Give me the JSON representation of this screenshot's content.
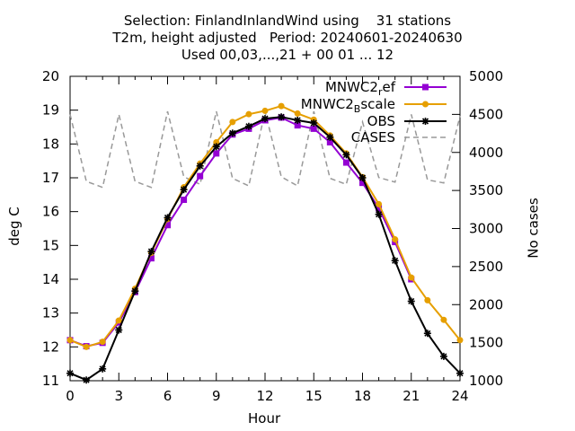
{
  "title": {
    "line1": "Selection: FinlandInlandWind using    31 stations",
    "line2": "T2m, height adjusted   Period: 20240601-20240630",
    "line3": "Used 00,03,...,21 + 00 01 ... 12"
  },
  "chart_data": {
    "type": "line",
    "xlabel": "Hour",
    "ylabel": "deg C",
    "y2label": "No cases",
    "xlim": [
      0,
      24
    ],
    "ylim": [
      11,
      20
    ],
    "y2lim": [
      1000,
      5000
    ],
    "xticks": [
      0,
      3,
      6,
      9,
      12,
      15,
      18,
      21,
      24
    ],
    "yticks": [
      11,
      12,
      13,
      14,
      15,
      16,
      17,
      18,
      19,
      20
    ],
    "y2ticks": [
      1000,
      1500,
      2000,
      2500,
      3000,
      3500,
      4000,
      4500,
      5000
    ],
    "grid": false,
    "legend_position": "top-right",
    "x": [
      0,
      1,
      2,
      3,
      4,
      5,
      6,
      7,
      8,
      9,
      10,
      11,
      12,
      13,
      14,
      15,
      16,
      17,
      18,
      19,
      20,
      21,
      22,
      23,
      24
    ],
    "series": [
      {
        "name": "MNWC2_ref",
        "name_main": "MNWC2",
        "name_sub": "r",
        "name_tail": "ef",
        "color": "#9400d3",
        "marker": "square",
        "axis": "left",
        "values": [
          12.2,
          12.02,
          12.12,
          12.72,
          13.62,
          14.62,
          15.6,
          16.35,
          17.05,
          17.72,
          18.28,
          18.45,
          18.7,
          18.78,
          18.55,
          18.45,
          18.05,
          17.45,
          16.85,
          16.1,
          15.1,
          14.0,
          null,
          null,
          null
        ]
      },
      {
        "name": "MNWC2_Bscale",
        "name_main": "MNWC2",
        "name_sub": "B",
        "name_tail": "scale",
        "color": "#e69f00",
        "marker": "circle",
        "axis": "left",
        "values": [
          12.2,
          12.0,
          12.15,
          12.78,
          13.72,
          14.78,
          15.78,
          16.72,
          17.42,
          18.05,
          18.65,
          18.88,
          18.98,
          19.12,
          18.9,
          18.72,
          18.25,
          17.72,
          17.02,
          16.22,
          15.18,
          14.05,
          13.38,
          12.8,
          12.2
        ]
      },
      {
        "name": "OBS",
        "color": "#000000",
        "marker": "star",
        "axis": "left",
        "values": [
          11.22,
          11.02,
          11.35,
          12.5,
          13.65,
          14.82,
          15.82,
          16.65,
          17.35,
          17.92,
          18.32,
          18.52,
          18.75,
          18.8,
          18.7,
          18.62,
          18.2,
          17.68,
          17.0,
          15.92,
          14.55,
          13.35,
          12.4,
          11.72,
          11.22
        ]
      },
      {
        "name": "CASES",
        "color": "#999999",
        "marker": "none",
        "dash": "dashed",
        "axis": "right",
        "values": [
          4500,
          3620,
          3540,
          4500,
          3620,
          3540,
          4540,
          3680,
          3580,
          4540,
          3660,
          3560,
          4540,
          3680,
          3560,
          4540,
          3660,
          3580,
          4400,
          3670,
          3610,
          4500,
          3640,
          3600,
          4480
        ]
      }
    ]
  }
}
